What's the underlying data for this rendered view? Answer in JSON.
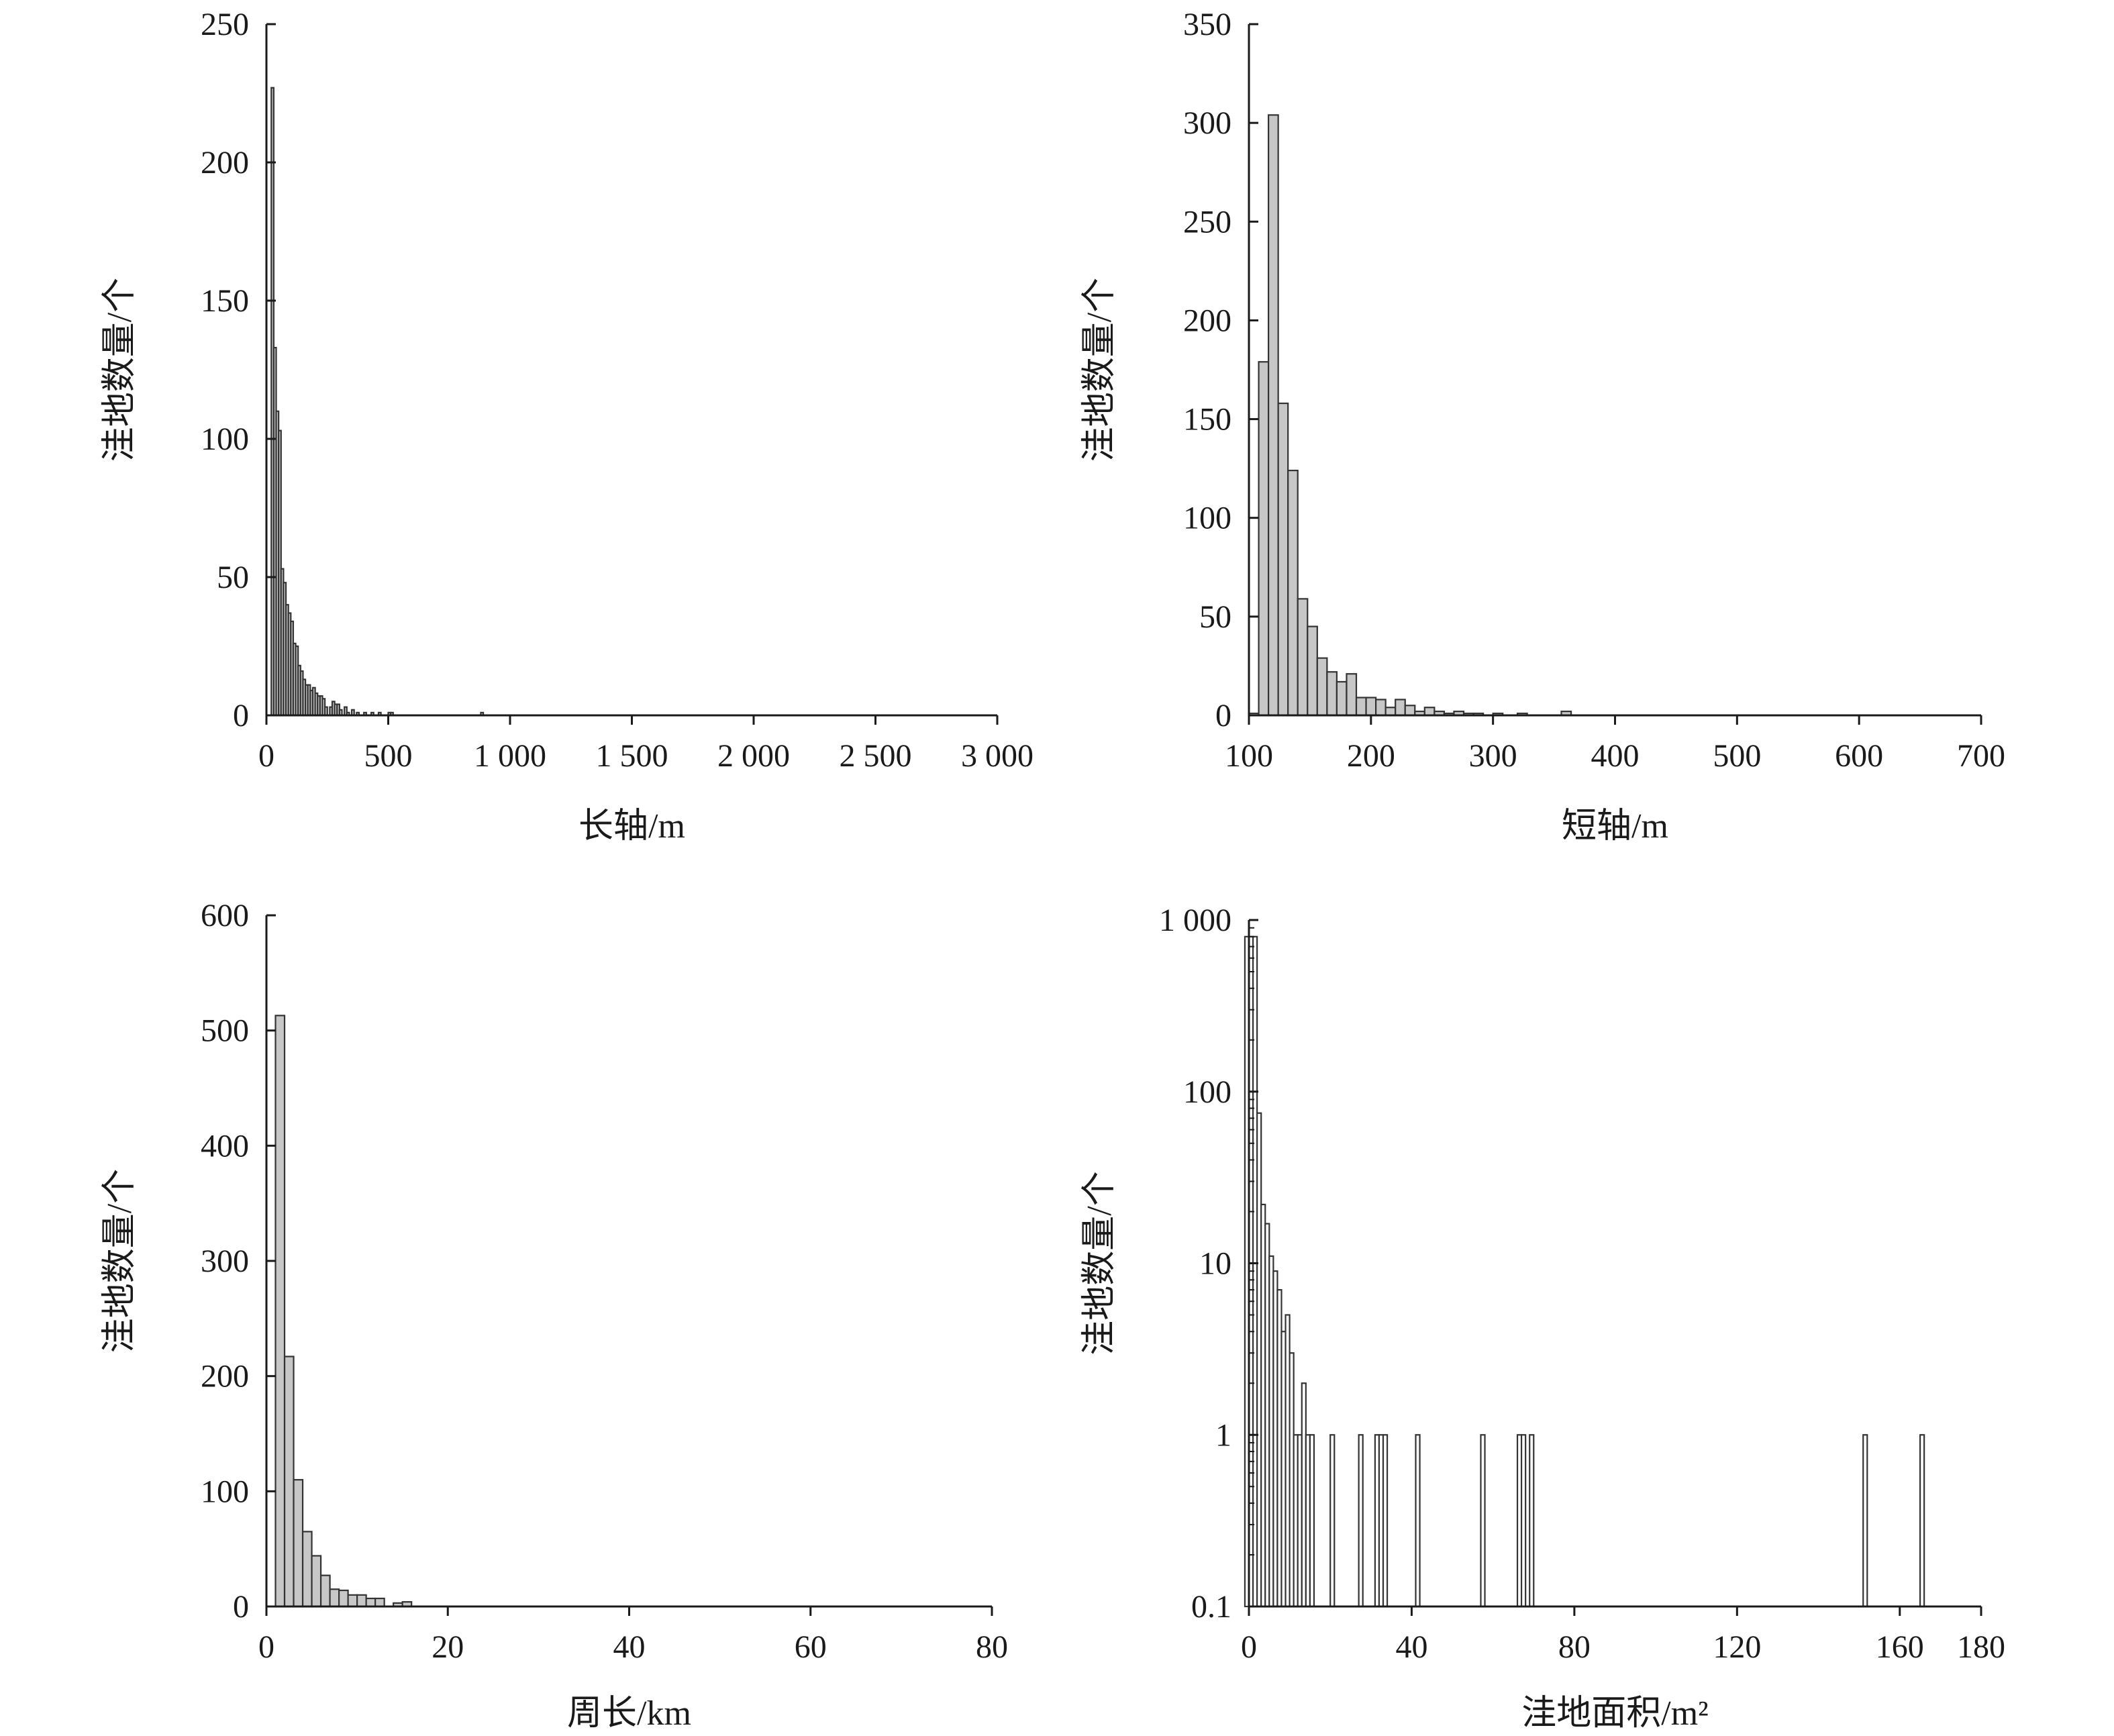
{
  "chart_data": [
    {
      "id": "major-axis",
      "type": "bar",
      "xlabel": "长轴/m",
      "ylabel": "洼地数量/个",
      "xlim": [
        0,
        3000
      ],
      "ylim": [
        0,
        250
      ],
      "yscale": "linear",
      "xticks": [
        0,
        500,
        1000,
        1500,
        2000,
        2500,
        3000
      ],
      "xtick_labels": [
        "0",
        "500",
        "1 000",
        "1 500",
        "2 000",
        "2 500",
        "3 000"
      ],
      "yticks": [
        0,
        50,
        100,
        150,
        200,
        250
      ],
      "ytick_labels": [
        "0",
        "50",
        "100",
        "150",
        "200",
        "250"
      ],
      "bin_width": 10,
      "bins": [
        [
          20,
          227
        ],
        [
          30,
          133
        ],
        [
          40,
          110
        ],
        [
          50,
          103
        ],
        [
          60,
          53
        ],
        [
          70,
          48
        ],
        [
          80,
          40
        ],
        [
          90,
          37
        ],
        [
          100,
          34
        ],
        [
          110,
          26
        ],
        [
          120,
          25
        ],
        [
          130,
          18
        ],
        [
          140,
          16
        ],
        [
          150,
          13
        ],
        [
          160,
          11
        ],
        [
          170,
          11
        ],
        [
          180,
          9
        ],
        [
          190,
          10
        ],
        [
          200,
          8
        ],
        [
          210,
          7
        ],
        [
          220,
          7
        ],
        [
          230,
          6
        ],
        [
          240,
          3
        ],
        [
          260,
          3
        ],
        [
          270,
          5
        ],
        [
          280,
          4
        ],
        [
          290,
          4
        ],
        [
          300,
          2
        ],
        [
          320,
          3
        ],
        [
          330,
          1
        ],
        [
          350,
          2
        ],
        [
          370,
          1
        ],
        [
          400,
          1
        ],
        [
          430,
          1
        ],
        [
          460,
          1
        ],
        [
          500,
          1
        ],
        [
          510,
          1
        ],
        [
          880,
          1
        ]
      ],
      "bar_fill": "#c7c7c7"
    },
    {
      "id": "minor-axis",
      "type": "bar",
      "xlabel": "短轴/m",
      "ylabel": "洼地数量/个",
      "xlim": [
        100,
        700
      ],
      "ylim": [
        0,
        350
      ],
      "yscale": "linear",
      "xticks": [
        100,
        200,
        300,
        400,
        500,
        600,
        700
      ],
      "xtick_labels": [
        "100",
        "200",
        "300",
        "400",
        "500",
        "600",
        "700"
      ],
      "yticks": [
        0,
        50,
        100,
        150,
        200,
        250,
        300,
        350
      ],
      "ytick_labels": [
        "0",
        "50",
        "100",
        "150",
        "200",
        "250",
        "300",
        "350"
      ],
      "bin_width": 8,
      "bins": [
        [
          100,
          1
        ],
        [
          108,
          179
        ],
        [
          116,
          304
        ],
        [
          124,
          158
        ],
        [
          132,
          124
        ],
        [
          140,
          59
        ],
        [
          148,
          45
        ],
        [
          156,
          29
        ],
        [
          164,
          22
        ],
        [
          172,
          17
        ],
        [
          180,
          21
        ],
        [
          188,
          9
        ],
        [
          196,
          9
        ],
        [
          204,
          8
        ],
        [
          212,
          4
        ],
        [
          220,
          8
        ],
        [
          228,
          5
        ],
        [
          236,
          2
        ],
        [
          244,
          4
        ],
        [
          252,
          2
        ],
        [
          260,
          1
        ],
        [
          268,
          2
        ],
        [
          276,
          1
        ],
        [
          284,
          1
        ],
        [
          300,
          1
        ],
        [
          320,
          1
        ],
        [
          356,
          2
        ]
      ],
      "bar_fill": "#c7c7c7"
    },
    {
      "id": "perimeter",
      "type": "bar",
      "xlabel": "周长/km",
      "ylabel": "洼地数量/个",
      "xlim": [
        0,
        80
      ],
      "ylim": [
        0,
        600
      ],
      "yscale": "linear",
      "xticks": [
        0,
        20,
        40,
        60,
        80
      ],
      "xtick_labels": [
        "0",
        "20",
        "40",
        "60",
        "80"
      ],
      "yticks": [
        0,
        100,
        200,
        300,
        400,
        500,
        600
      ],
      "ytick_labels": [
        "0",
        "100",
        "200",
        "300",
        "400",
        "500",
        "600"
      ],
      "bin_width": 1,
      "bins": [
        [
          1,
          513
        ],
        [
          2,
          217
        ],
        [
          3,
          110
        ],
        [
          4,
          65
        ],
        [
          5,
          44
        ],
        [
          6,
          27
        ],
        [
          7,
          15
        ],
        [
          8,
          14
        ],
        [
          9,
          10
        ],
        [
          10,
          10
        ],
        [
          11,
          7
        ],
        [
          12,
          7
        ],
        [
          14,
          3
        ],
        [
          15,
          4
        ]
      ],
      "bar_fill": "#c7c7c7"
    },
    {
      "id": "area",
      "type": "bar",
      "xlabel": "洼地面积/m²",
      "ylabel": "洼地数量/个",
      "xlim": [
        0,
        180
      ],
      "ylim": [
        0.1,
        1000
      ],
      "yscale": "log",
      "xticks": [
        0,
        40,
        80,
        120,
        160,
        180
      ],
      "xtick_labels": [
        "0",
        "40",
        "80",
        "120",
        "160",
        "180"
      ],
      "yticks": [
        0.1,
        1,
        10,
        100,
        1000
      ],
      "ytick_labels": [
        "0.1",
        "1",
        "10",
        "100",
        "1 000"
      ],
      "bin_width": 1,
      "bins": [
        [
          -1,
          800
        ],
        [
          0,
          800
        ],
        [
          1,
          800
        ],
        [
          2,
          75
        ],
        [
          3,
          22
        ],
        [
          4,
          17
        ],
        [
          5,
          11
        ],
        [
          6,
          9
        ],
        [
          7,
          7
        ],
        [
          8,
          4
        ],
        [
          9,
          5
        ],
        [
          10,
          3
        ],
        [
          11,
          1
        ],
        [
          12,
          1
        ],
        [
          13,
          2
        ],
        [
          14,
          1
        ],
        [
          15,
          1
        ],
        [
          20,
          1
        ],
        [
          27,
          1
        ],
        [
          31,
          1
        ],
        [
          32,
          1
        ],
        [
          33,
          1
        ],
        [
          41,
          1
        ],
        [
          57,
          1
        ],
        [
          66,
          1
        ],
        [
          67,
          1
        ],
        [
          69,
          1
        ],
        [
          151,
          1
        ],
        [
          165,
          1
        ]
      ],
      "bar_fill": "#ffffff"
    }
  ]
}
